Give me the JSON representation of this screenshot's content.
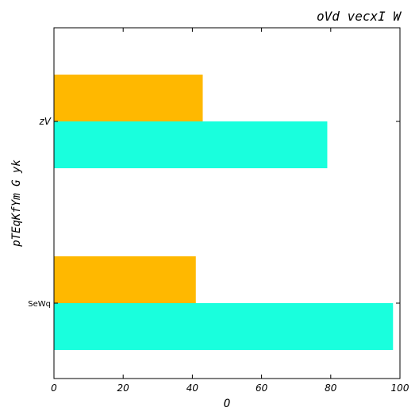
{
  "chart_data": {
    "type": "bar",
    "orientation": "horizontal",
    "title": "oVd vecxI  W",
    "xlabel": "O",
    "ylabel": "pTEqKfYm  G yk",
    "categories": [
      "zV",
      "SeWq"
    ],
    "series": [
      {
        "values": [
          43,
          41
        ],
        "color": "#ffb800"
      },
      {
        "values": [
          79,
          98
        ],
        "color": "#19ffdd"
      }
    ],
    "xlim": [
      0,
      100
    ],
    "xticks": [
      0,
      20,
      40,
      60,
      80,
      100
    ],
    "grid": false,
    "legend": "none"
  }
}
